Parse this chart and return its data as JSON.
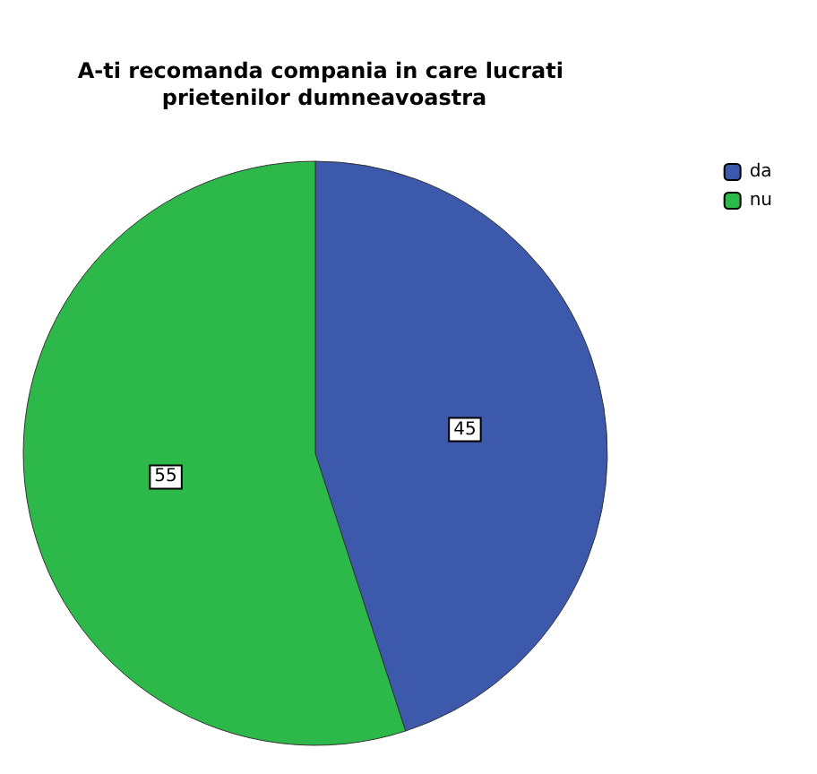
{
  "chart_data": {
    "type": "pie",
    "title": "A-ti recomanda compania in care lucrati prietenilor dumneavoastra",
    "categories": [
      "da",
      "nu"
    ],
    "values": [
      45,
      55
    ],
    "colors": [
      "#3d59ab",
      "#2db84a"
    ],
    "data_labels": true,
    "legend": "top right"
  }
}
